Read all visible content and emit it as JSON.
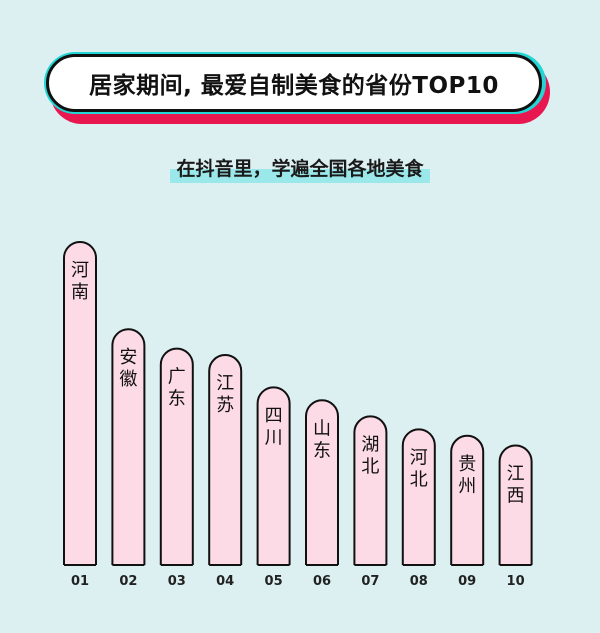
{
  "title": "居家期间, 最爱自制美食的省份TOP10",
  "subtitle": "在抖音里，学遍全国各地美食",
  "colors": {
    "bar_fill": "#fddbe6",
    "bar_stroke": "#111111",
    "background": "#dcf0f2"
  },
  "chart_data": {
    "type": "bar",
    "categories": [
      "01",
      "02",
      "03",
      "04",
      "05",
      "06",
      "07",
      "08",
      "09",
      "10"
    ],
    "bar_labels": [
      "河南",
      "安徽",
      "广东",
      "江苏",
      "四川",
      "山东",
      "湖北",
      "河北",
      "贵州",
      "江西"
    ],
    "values": [
      10,
      7.3,
      6.7,
      6.5,
      5.5,
      5.1,
      4.6,
      4.2,
      4.0,
      3.7
    ],
    "title": "居家期间, 最爱自制美食的省份TOP10",
    "subtitle": "在抖音里，学遍全国各地美食",
    "ylim": [
      0,
      10
    ],
    "grid": false
  }
}
